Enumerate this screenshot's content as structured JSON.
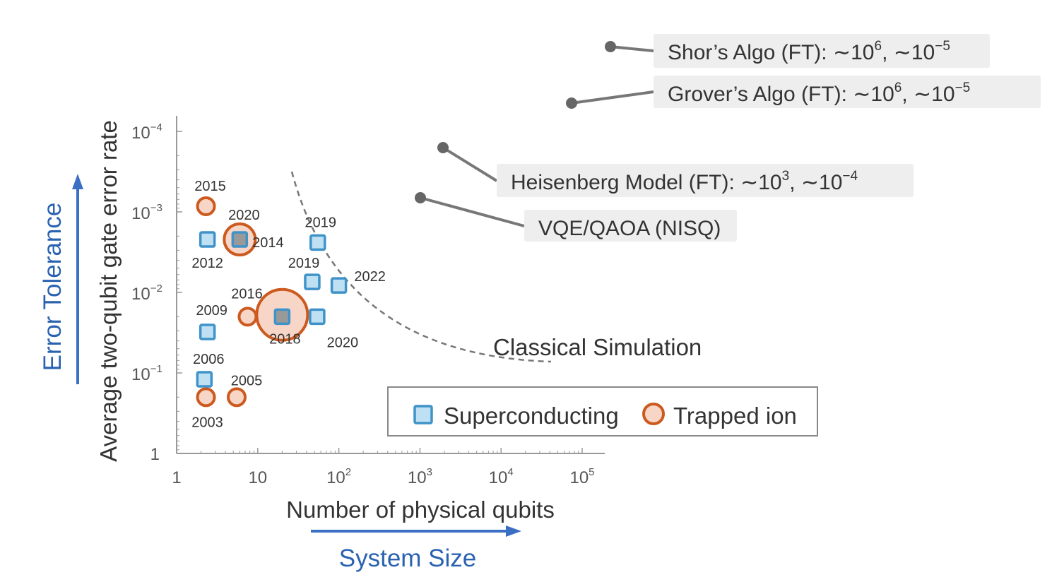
{
  "colors": {
    "axis": "#999999",
    "tick_text": "#555555",
    "label_text": "#333333",
    "accent_blue": "#3b6fc4",
    "accent_text": "#2a62b0",
    "sc_fill": "#bfe0f2",
    "sc_stroke": "#3f93c9",
    "ion_fill": "#f8d6c7",
    "ion_stroke": "#cc5a1f",
    "overlap_fill": "#999999",
    "callout_bg": "#eeeeee",
    "callout_line": "#777777",
    "curve": "#777777"
  },
  "chart_data": {
    "type": "scatter",
    "xlabel": "Number of physical qubits",
    "ylabel": "Average two-qubit gate error rate",
    "x_scale": "log",
    "y_scale": "log",
    "xlim": [
      1,
      100000
    ],
    "ylim": [
      1,
      0.0001
    ],
    "x_ticks": [
      {
        "value": 1,
        "base": "1",
        "exp": ""
      },
      {
        "value": 10,
        "base": "10",
        "exp": ""
      },
      {
        "value": 100,
        "base": "10",
        "exp": "2"
      },
      {
        "value": 1000,
        "base": "10",
        "exp": "3"
      },
      {
        "value": 10000,
        "base": "10",
        "exp": "4"
      },
      {
        "value": 100000,
        "base": "10",
        "exp": "5"
      }
    ],
    "y_ticks": [
      {
        "value": 1,
        "base": "1",
        "exp": ""
      },
      {
        "value": 0.1,
        "base": "10",
        "exp": "−1"
      },
      {
        "value": 0.01,
        "base": "10",
        "exp": "−2"
      },
      {
        "value": 0.001,
        "base": "10",
        "exp": "−3"
      },
      {
        "value": 0.0001,
        "base": "10",
        "exp": "−4"
      }
    ],
    "grid": false,
    "legend_position": "bottom-right",
    "series": [
      {
        "name": "Superconducting",
        "marker": "square",
        "points": [
          {
            "x": 2.4,
            "y": 0.0022,
            "label": "2012"
          },
          {
            "x": 6,
            "y": 0.0022,
            "label": "2014"
          },
          {
            "x": 55,
            "y": 0.0024,
            "label": "2019"
          },
          {
            "x": 47,
            "y": 0.0074,
            "label": "2019"
          },
          {
            "x": 100,
            "y": 0.0082,
            "label": "2022"
          },
          {
            "x": 54,
            "y": 0.02,
            "label": "2020"
          },
          {
            "x": 20,
            "y": 0.02,
            "label": "2018"
          },
          {
            "x": 2.4,
            "y": 0.031,
            "label": "2009"
          },
          {
            "x": 2.2,
            "y": 0.12,
            "label": "2006"
          }
        ]
      },
      {
        "name": "Trapped ion",
        "marker": "circle",
        "points": [
          {
            "x": 2.3,
            "y": 0.00085,
            "label": "2015",
            "size": 1
          },
          {
            "x": 6,
            "y": 0.0022,
            "label": "2020",
            "size": 2
          },
          {
            "x": 7.5,
            "y": 0.02,
            "label": "2016",
            "size": 1
          },
          {
            "x": 20,
            "y": 0.019,
            "label": "",
            "size": 3
          },
          {
            "x": 2.3,
            "y": 0.2,
            "label": "2003",
            "size": 1
          },
          {
            "x": 5.5,
            "y": 0.2,
            "label": "2005",
            "size": 1
          }
        ]
      }
    ],
    "annotations": [
      {
        "text": "Shor’s Algo (FT): ∼10",
        "sup1": "6",
        "mid": ", ∼10",
        "sup2": "−5"
      },
      {
        "text": "Grover’s Algo (FT): ∼10",
        "sup1": "6",
        "mid": ", ∼10",
        "sup2": "−5"
      },
      {
        "text": "Heisenberg Model (FT): ∼10",
        "sup1": "3",
        "mid": ", ∼10",
        "sup2": "−4"
      },
      {
        "text": "VQE/QAOA (NISQ)",
        "sup1": "",
        "mid": "",
        "sup2": ""
      }
    ],
    "classical_simulation_label": "Classical Simulation",
    "arrows": {
      "vertical": "Error Tolerance",
      "horizontal": "System Size"
    }
  }
}
